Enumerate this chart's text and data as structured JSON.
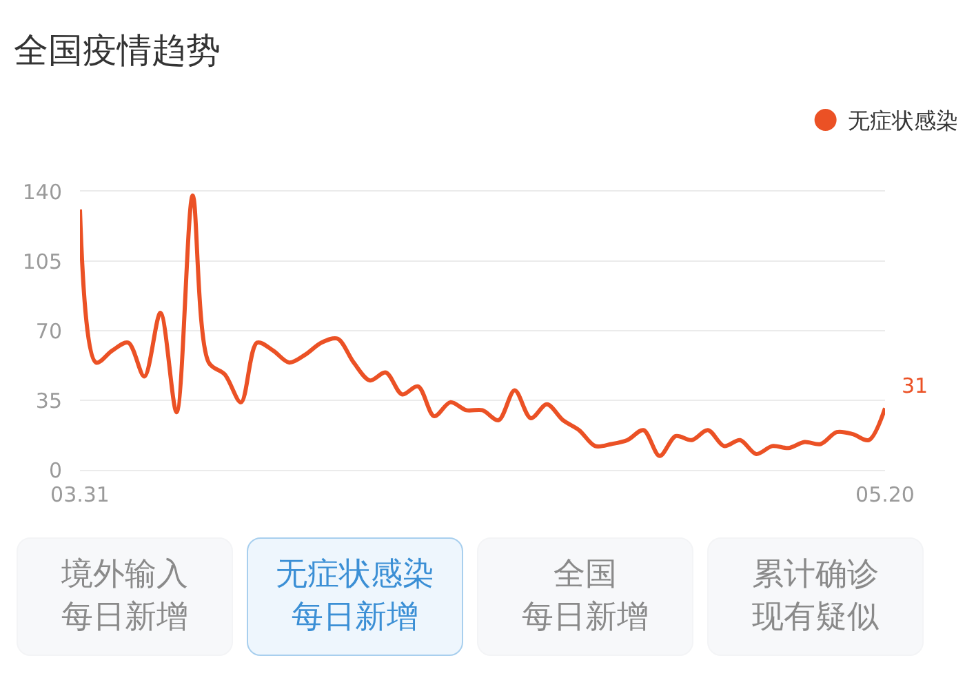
{
  "chart_data": {
    "type": "line",
    "title": "全国疫情趋势",
    "categories": [
      "03.31",
      null,
      null,
      null,
      null,
      null,
      null,
      null,
      null,
      null,
      null,
      null,
      null,
      null,
      null,
      null,
      null,
      null,
      null,
      null,
      null,
      null,
      null,
      null,
      null,
      null,
      null,
      null,
      null,
      null,
      null,
      null,
      null,
      null,
      null,
      null,
      null,
      null,
      null,
      null,
      null,
      null,
      null,
      null,
      null,
      null,
      null,
      null,
      null,
      null,
      "05.20"
    ],
    "series": [
      {
        "name": "无症状感染",
        "color": "#eb5125",
        "values": [
          131,
          54,
          60,
          64,
          47,
          79,
          29,
          138,
          54,
          48,
          34,
          64,
          60,
          54,
          58,
          64,
          66,
          54,
          45,
          49,
          38,
          42,
          27,
          34,
          30,
          30,
          25,
          40,
          26,
          33,
          25,
          20,
          12,
          13,
          15,
          20,
          7,
          17,
          15,
          20,
          12,
          15,
          8,
          12,
          11,
          14,
          13,
          19,
          18,
          15,
          31
        ],
        "value_labels": [
          null,
          null,
          null,
          null,
          null,
          null,
          null,
          null,
          null,
          null,
          null,
          null,
          null,
          null,
          null,
          null,
          null,
          null,
          null,
          null,
          null,
          null,
          null,
          null,
          null,
          null,
          null,
          null,
          null,
          null,
          null,
          null,
          null,
          null,
          null,
          null,
          null,
          null,
          null,
          null,
          null,
          null,
          null,
          null,
          null,
          null,
          null,
          null,
          null,
          null,
          "31"
        ]
      }
    ],
    "ylim": [
      0,
      140
    ],
    "yticks": [
      0,
      35,
      70,
      105,
      140
    ],
    "grid": "y",
    "legend": "top right",
    "annotations": [
      "境外输入",
      "每日新增",
      "无症状感染",
      "每日新增",
      "全国",
      "每日新增",
      "累计确诊",
      "现有疑似"
    ]
  }
}
